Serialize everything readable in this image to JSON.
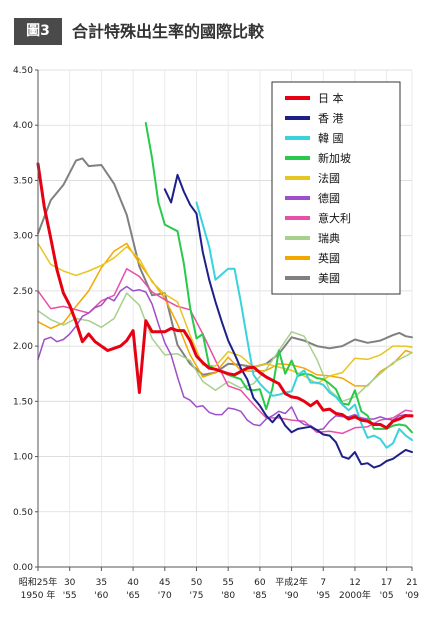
{
  "header": {
    "badge": "圖3",
    "title": "合計特殊出生率的國際比較"
  },
  "chart_data": {
    "type": "line",
    "title": "合計特殊出生率的國際比較",
    "xlabel": "",
    "ylabel": "",
    "xlim": [
      1950,
      2009
    ],
    "ylim": [
      0,
      4.5
    ],
    "y_ticks": [
      "0.00",
      "0.50",
      "1.00",
      "1.50",
      "2.00",
      "2.50",
      "3.00",
      "3.50",
      "4.00",
      "4.50"
    ],
    "x_tick_labels": [
      {
        "x": 1950,
        "top": "昭和25年",
        "bottom": "1950 年"
      },
      {
        "x": 1955,
        "top": "30",
        "bottom": "'55"
      },
      {
        "x": 1960,
        "top": "35",
        "bottom": "'60"
      },
      {
        "x": 1965,
        "top": "40",
        "bottom": "'65"
      },
      {
        "x": 1970,
        "top": "45",
        "bottom": "'70"
      },
      {
        "x": 1975,
        "top": "50",
        "bottom": "'75"
      },
      {
        "x": 1980,
        "top": "55",
        "bottom": "'80"
      },
      {
        "x": 1985,
        "top": "60",
        "bottom": "'85"
      },
      {
        "x": 1990,
        "top": "平成2年",
        "bottom": "'90"
      },
      {
        "x": 1995,
        "top": "7",
        "bottom": "'95"
      },
      {
        "x": 2000,
        "top": "12",
        "bottom": "2000年"
      },
      {
        "x": 2005,
        "top": "17",
        "bottom": "'05"
      },
      {
        "x": 2009,
        "top": "21",
        "bottom": "'09"
      }
    ],
    "legend_position": "top-right",
    "grid": true,
    "series": [
      {
        "name": "日 本",
        "color": "#e60012",
        "width": 3,
        "x": [
          1950,
          1951,
          1952,
          1953,
          1954,
          1955,
          1956,
          1957,
          1958,
          1959,
          1960,
          1961,
          1962,
          1963,
          1964,
          1965,
          1966,
          1967,
          1968,
          1969,
          1970,
          1971,
          1972,
          1973,
          1974,
          1975,
          1976,
          1977,
          1978,
          1979,
          1980,
          1981,
          1982,
          1983,
          1984,
          1985,
          1986,
          1987,
          1988,
          1989,
          1990,
          1991,
          1992,
          1993,
          1994,
          1995,
          1996,
          1997,
          1998,
          1999,
          2000,
          2001,
          2002,
          2003,
          2004,
          2005,
          2006,
          2007,
          2008,
          2009
        ],
        "y": [
          3.65,
          3.26,
          2.98,
          2.69,
          2.48,
          2.37,
          2.22,
          2.04,
          2.11,
          2.04,
          2.0,
          1.96,
          1.98,
          2.0,
          2.05,
          2.14,
          1.58,
          2.23,
          2.13,
          2.13,
          2.13,
          2.16,
          2.14,
          2.14,
          2.05,
          1.91,
          1.85,
          1.8,
          1.79,
          1.77,
          1.75,
          1.74,
          1.77,
          1.8,
          1.81,
          1.76,
          1.72,
          1.69,
          1.66,
          1.57,
          1.54,
          1.53,
          1.5,
          1.46,
          1.5,
          1.42,
          1.43,
          1.39,
          1.38,
          1.34,
          1.36,
          1.33,
          1.32,
          1.29,
          1.29,
          1.26,
          1.32,
          1.34,
          1.37,
          1.37
        ]
      },
      {
        "name": "香 港",
        "color": "#1d2088",
        "width": 2,
        "x": [
          1970,
          1971,
          1972,
          1973,
          1974,
          1975,
          1976,
          1977,
          1978,
          1979,
          1980,
          1981,
          1982,
          1983,
          1984,
          1985,
          1986,
          1987,
          1988,
          1989,
          1990,
          1991,
          1992,
          1993,
          1994,
          1995,
          1996,
          1997,
          1998,
          1999,
          2000,
          2001,
          2002,
          2003,
          2004,
          2005,
          2006,
          2007,
          2008,
          2009
        ],
        "y": [
          3.42,
          3.3,
          3.55,
          3.4,
          3.28,
          3.2,
          2.85,
          2.6,
          2.4,
          2.22,
          2.05,
          1.93,
          1.8,
          1.7,
          1.53,
          1.46,
          1.37,
          1.31,
          1.38,
          1.28,
          1.22,
          1.25,
          1.26,
          1.27,
          1.24,
          1.2,
          1.19,
          1.13,
          1.0,
          0.98,
          1.04,
          0.93,
          0.94,
          0.9,
          0.92,
          0.96,
          0.98,
          1.02,
          1.06,
          1.04
        ]
      },
      {
        "name": "韓 國",
        "color": "#38d3dd",
        "width": 2,
        "x": [
          1975,
          1976,
          1977,
          1978,
          1979,
          1980,
          1981,
          1982,
          1983,
          1984,
          1985,
          1986,
          1987,
          1988,
          1989,
          1990,
          1991,
          1992,
          1993,
          1994,
          1995,
          1996,
          1997,
          1998,
          1999,
          2000,
          2001,
          2002,
          2003,
          2004,
          2005,
          2006,
          2007,
          2008,
          2009
        ],
        "y": [
          3.3,
          3.1,
          2.9,
          2.6,
          2.65,
          2.7,
          2.7,
          2.4,
          2.06,
          1.74,
          1.66,
          1.6,
          1.55,
          1.56,
          1.58,
          1.59,
          1.74,
          1.78,
          1.67,
          1.67,
          1.65,
          1.58,
          1.54,
          1.47,
          1.42,
          1.47,
          1.3,
          1.17,
          1.19,
          1.16,
          1.08,
          1.12,
          1.25,
          1.19,
          1.15
        ]
      },
      {
        "name": "新加坡",
        "color": "#29c94b",
        "width": 2,
        "x": [
          1967,
          1968,
          1969,
          1970,
          1971,
          1972,
          1973,
          1974,
          1975,
          1976,
          1977,
          1978,
          1979,
          1980,
          1981,
          1982,
          1983,
          1984,
          1985,
          1986,
          1987,
          1988,
          1989,
          1990,
          1991,
          1992,
          1993,
          1994,
          1995,
          1996,
          1997,
          1998,
          1999,
          2000,
          2001,
          2002,
          2003,
          2004,
          2005,
          2006,
          2007,
          2008,
          2009
        ],
        "y": [
          4.02,
          3.7,
          3.3,
          3.1,
          3.07,
          3.04,
          2.75,
          2.35,
          2.07,
          2.11,
          1.82,
          1.79,
          1.77,
          1.74,
          1.72,
          1.7,
          1.61,
          1.6,
          1.61,
          1.43,
          1.62,
          1.96,
          1.75,
          1.87,
          1.73,
          1.75,
          1.74,
          1.71,
          1.7,
          1.66,
          1.61,
          1.48,
          1.47,
          1.6,
          1.41,
          1.37,
          1.25,
          1.25,
          1.25,
          1.28,
          1.29,
          1.28,
          1.22
        ]
      },
      {
        "name": "法國",
        "color": "#e8c520",
        "width": 1.5,
        "x": [
          1950,
          1952,
          1954,
          1956,
          1958,
          1960,
          1962,
          1964,
          1966,
          1968,
          1970,
          1972,
          1974,
          1976,
          1978,
          1980,
          1982,
          1984,
          1986,
          1988,
          1990,
          1992,
          1994,
          1996,
          1998,
          2000,
          2002,
          2004,
          2006,
          2008,
          2009
        ],
        "y": [
          2.93,
          2.74,
          2.68,
          2.64,
          2.68,
          2.73,
          2.8,
          2.9,
          2.79,
          2.58,
          2.47,
          2.4,
          2.1,
          1.83,
          1.82,
          1.95,
          1.91,
          1.81,
          1.84,
          1.81,
          1.78,
          1.73,
          1.66,
          1.73,
          1.76,
          1.89,
          1.88,
          1.92,
          2.0,
          2.0,
          1.99
        ]
      },
      {
        "name": "德國",
        "color": "#9e4fcb",
        "width": 1.5,
        "x": [
          1950,
          1951,
          1952,
          1953,
          1954,
          1955,
          1956,
          1957,
          1958,
          1959,
          1960,
          1961,
          1962,
          1963,
          1964,
          1965,
          1966,
          1967,
          1968,
          1969,
          1970,
          1971,
          1972,
          1973,
          1974,
          1975,
          1976,
          1977,
          1978,
          1979,
          1980,
          1981,
          1982,
          1983,
          1984,
          1985,
          1986,
          1987,
          1988,
          1989,
          1990,
          1991,
          1992,
          1993,
          1994,
          1995,
          1996,
          1997,
          1998,
          1999,
          2000,
          2001,
          2002,
          2003,
          2004,
          2005,
          2006,
          2007,
          2008,
          2009
        ],
        "y": [
          1.88,
          2.06,
          2.08,
          2.04,
          2.06,
          2.11,
          2.18,
          2.27,
          2.3,
          2.35,
          2.37,
          2.44,
          2.41,
          2.5,
          2.54,
          2.5,
          2.51,
          2.49,
          2.38,
          2.2,
          2.03,
          1.92,
          1.72,
          1.54,
          1.51,
          1.45,
          1.46,
          1.4,
          1.38,
          1.38,
          1.44,
          1.43,
          1.41,
          1.33,
          1.29,
          1.28,
          1.34,
          1.37,
          1.41,
          1.39,
          1.45,
          1.33,
          1.29,
          1.28,
          1.24,
          1.25,
          1.32,
          1.37,
          1.36,
          1.36,
          1.38,
          1.35,
          1.34,
          1.34,
          1.36,
          1.34,
          1.33,
          1.37,
          1.38,
          1.36
        ]
      },
      {
        "name": "意大利",
        "color": "#e84fa8",
        "width": 1.5,
        "x": [
          1950,
          1952,
          1954,
          1956,
          1958,
          1960,
          1962,
          1964,
          1966,
          1968,
          1970,
          1972,
          1974,
          1976,
          1978,
          1980,
          1982,
          1984,
          1986,
          1988,
          1990,
          1992,
          1994,
          1996,
          1998,
          2000,
          2002,
          2004,
          2006,
          2008,
          2009
        ],
        "y": [
          2.5,
          2.34,
          2.36,
          2.33,
          2.3,
          2.41,
          2.46,
          2.7,
          2.63,
          2.49,
          2.42,
          2.36,
          2.33,
          2.11,
          1.87,
          1.64,
          1.6,
          1.47,
          1.35,
          1.35,
          1.33,
          1.32,
          1.22,
          1.23,
          1.21,
          1.26,
          1.27,
          1.33,
          1.35,
          1.42,
          1.41
        ]
      },
      {
        "name": "瑞典",
        "color": "#a8d08d",
        "width": 1.5,
        "x": [
          1950,
          1952,
          1954,
          1956,
          1958,
          1960,
          1962,
          1964,
          1966,
          1968,
          1970,
          1972,
          1974,
          1976,
          1978,
          1980,
          1982,
          1984,
          1986,
          1988,
          1990,
          1992,
          1994,
          1996,
          1998,
          2000,
          2002,
          2004,
          2006,
          2008,
          2009
        ],
        "y": [
          2.32,
          2.24,
          2.19,
          2.25,
          2.23,
          2.17,
          2.25,
          2.48,
          2.37,
          2.07,
          1.92,
          1.93,
          1.87,
          1.68,
          1.6,
          1.68,
          1.62,
          1.66,
          1.79,
          1.96,
          2.13,
          2.09,
          1.88,
          1.6,
          1.5,
          1.54,
          1.65,
          1.75,
          1.85,
          1.91,
          1.94
        ]
      },
      {
        "name": "英國",
        "color": "#f3a800",
        "width": 1.5,
        "x": [
          1950,
          1952,
          1954,
          1956,
          1958,
          1960,
          1962,
          1964,
          1966,
          1968,
          1970,
          1972,
          1974,
          1976,
          1978,
          1980,
          1982,
          1984,
          1986,
          1988,
          1990,
          1992,
          1994,
          1996,
          1998,
          2000,
          2002,
          2004,
          2006,
          2008,
          2009
        ],
        "y": [
          2.22,
          2.16,
          2.21,
          2.36,
          2.5,
          2.71,
          2.86,
          2.93,
          2.75,
          2.59,
          2.43,
          2.2,
          1.92,
          1.72,
          1.76,
          1.9,
          1.78,
          1.77,
          1.78,
          1.84,
          1.83,
          1.8,
          1.74,
          1.73,
          1.71,
          1.64,
          1.64,
          1.77,
          1.84,
          1.96,
          1.94
        ]
      },
      {
        "name": "美國",
        "color": "#808080",
        "width": 2,
        "x": [
          1950,
          1952,
          1954,
          1956,
          1957,
          1958,
          1960,
          1962,
          1964,
          1966,
          1968,
          1970,
          1972,
          1974,
          1976,
          1978,
          1980,
          1982,
          1984,
          1986,
          1988,
          1990,
          1992,
          1994,
          1996,
          1998,
          2000,
          2002,
          2004,
          2006,
          2007,
          2008,
          2009
        ],
        "y": [
          3.02,
          3.32,
          3.46,
          3.68,
          3.7,
          3.63,
          3.64,
          3.47,
          3.19,
          2.72,
          2.46,
          2.48,
          2.01,
          1.84,
          1.74,
          1.76,
          1.84,
          1.83,
          1.81,
          1.84,
          1.93,
          2.08,
          2.05,
          2.0,
          1.98,
          2.0,
          2.06,
          2.03,
          2.05,
          2.1,
          2.12,
          2.09,
          2.08
        ]
      }
    ]
  }
}
